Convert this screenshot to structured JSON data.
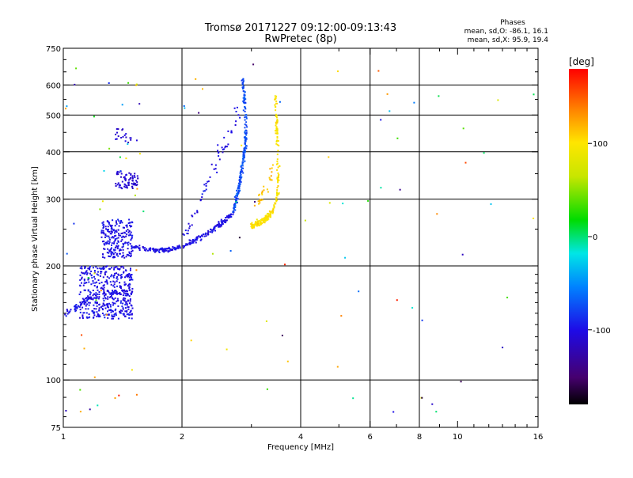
{
  "chart_data": {
    "type": "scatter",
    "title": "Tromsø 20171227 09:12:00-09:13:43",
    "subtitle": "RwPretec (8p)",
    "xlabel": "Frequency [MHz]",
    "ylabel": "Stationary phase Virtual Height [km]",
    "x_scale": "log",
    "y_scale": "log",
    "xlim": [
      1,
      16
    ],
    "ylim": [
      75,
      750
    ],
    "x_ticks": [
      1,
      2,
      4,
      6,
      8,
      10,
      16
    ],
    "x_tick_labels": [
      "1",
      "2",
      "4",
      "6",
      "8",
      "10",
      "16"
    ],
    "y_ticks": [
      75,
      100,
      200,
      300,
      400,
      500,
      600,
      750
    ],
    "y_tick_labels": [
      "75",
      "100",
      "200",
      "300",
      "400",
      "500",
      "600",
      "750"
    ],
    "x_grid": [
      2,
      4,
      6,
      8,
      16
    ],
    "y_grid": [
      100,
      200,
      300,
      400,
      500,
      600,
      750
    ],
    "grid": true,
    "phases_box": {
      "title": "Phases",
      "line1": "mean, sd,O: -86.1, 16.1",
      "line2": "mean, sd,X:  95.9, 19.4"
    },
    "colorbar": {
      "label": "[deg]",
      "range": [
        -180,
        180
      ],
      "ticks": [
        100,
        0,
        -100
      ],
      "tick_labels": [
        "100",
        "0",
        "-100"
      ]
    },
    "traces": [
      {
        "type": "curve",
        "f": [
          1.0,
          1.05,
          1.1,
          1.15,
          1.2,
          1.3,
          1.4,
          1.5
        ],
        "h": [
          150,
          152,
          158,
          163,
          167,
          170,
          170,
          168
        ],
        "phase": -100,
        "n": 110,
        "df": 0.015,
        "dh": 0.03
      },
      {
        "type": "blob",
        "f": [
          1.1,
          1.5
        ],
        "h": [
          145,
          200
        ],
        "phase": -100,
        "n": 420
      },
      {
        "type": "blob",
        "f": [
          1.25,
          1.5
        ],
        "h": [
          210,
          265
        ],
        "phase": -100,
        "n": 220
      },
      {
        "type": "curve",
        "f": [
          1.5,
          1.6,
          1.7,
          1.8,
          1.9,
          2.0,
          2.1,
          2.2,
          2.3,
          2.4,
          2.5,
          2.6,
          2.7
        ],
        "h": [
          225,
          222,
          220,
          220,
          222,
          225,
          230,
          236,
          243,
          250,
          258,
          266,
          278
        ],
        "phase": -100,
        "n": 240,
        "df": 0.02,
        "dh": 0.018
      },
      {
        "type": "curve",
        "f": [
          2.7,
          2.75,
          2.8,
          2.85,
          2.9,
          2.9,
          2.88,
          2.85
        ],
        "h": [
          280,
          300,
          330,
          370,
          420,
          480,
          560,
          620
        ],
        "phase": -75,
        "n": 220,
        "df": 0.012,
        "dh": 0.03
      },
      {
        "type": "curve",
        "f": [
          2.05,
          2.2,
          2.4,
          2.6,
          2.8
        ],
        "h": [
          240,
          290,
          360,
          430,
          520
        ],
        "phase": -100,
        "n": 60,
        "df": 0.03,
        "dh": 0.05
      },
      {
        "type": "blob",
        "f": [
          1.35,
          1.55
        ],
        "h": [
          320,
          355
        ],
        "phase": -110,
        "n": 70
      },
      {
        "type": "blob",
        "f": [
          1.35,
          1.55
        ],
        "h": [
          420,
          460
        ],
        "phase": -110,
        "n": 20
      },
      {
        "type": "curve",
        "f": [
          3.0,
          3.1,
          3.2,
          3.3,
          3.4,
          3.5,
          3.5,
          3.48,
          3.45
        ],
        "h": [
          255,
          258,
          262,
          268,
          280,
          310,
          380,
          460,
          570
        ],
        "phase": 100,
        "n": 230,
        "df": 0.012,
        "dh": 0.03
      },
      {
        "type": "curve",
        "f": [
          3.1,
          3.2,
          3.3,
          3.4
        ],
        "h": [
          290,
          310,
          330,
          360
        ],
        "phase": 115,
        "n": 30,
        "df": 0.02,
        "dh": 0.05
      },
      {
        "type": "scatter",
        "f": [
          1.0,
          1.6
        ],
        "h": [
          80,
          720
        ],
        "phase_range": [
          -130,
          180
        ],
        "n": 45
      },
      {
        "type": "scatter",
        "f": [
          2.0,
          16.0
        ],
        "h": [
          80,
          720
        ],
        "phase_range": [
          -170,
          180
        ],
        "n": 60
      }
    ]
  }
}
